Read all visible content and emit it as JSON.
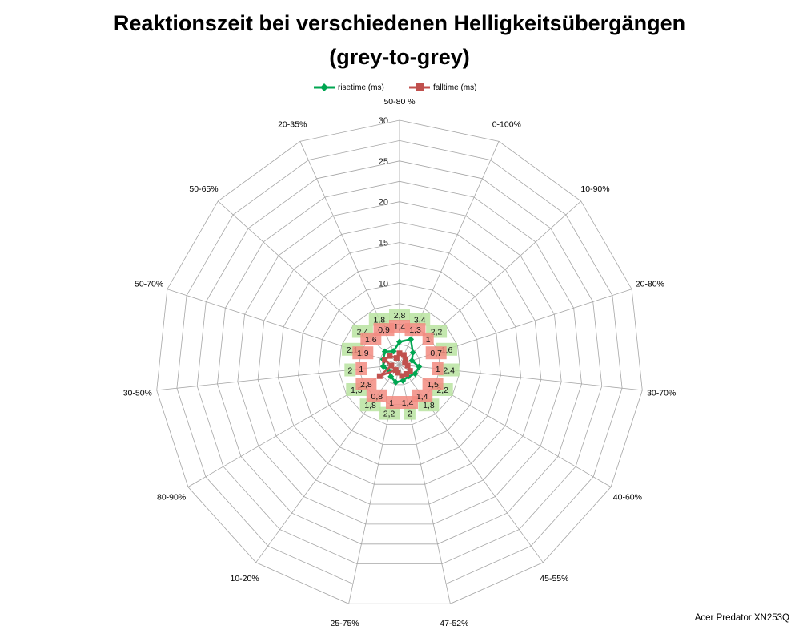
{
  "chart_data": {
    "type": "radar",
    "title": "Reaktionszeit bei verschiedenen Helligkeitsübergängen",
    "subtitle": "(grey-to-grey)",
    "categories": [
      "50-80 %",
      "0-100%",
      "10-90%",
      "20-80%",
      "30-70%",
      "40-60%",
      "45-55%",
      "47-52%",
      "25-75%",
      "10-20%",
      "80-90%",
      "30-50%",
      "50-70%",
      "50-65%",
      "20-35%"
    ],
    "series": [
      {
        "name": "risetime (ms)",
        "color": "#00a651",
        "label_bg": "#b9e3a0",
        "marker": "diamond",
        "values": [
          2.8,
          3.4,
          2.2,
          1.6,
          2.4,
          2.2,
          1.8,
          2,
          2.2,
          1.8,
          1.5,
          2,
          2.1,
          2.4,
          1.8
        ]
      },
      {
        "name": "falltime (ms)",
        "color": "#c0504d",
        "label_bg": "#f28b80",
        "marker": "square",
        "values": [
          1.4,
          1.3,
          1,
          0.7,
          1,
          1.5,
          1.4,
          1.4,
          1,
          0.8,
          2.8,
          1,
          1.9,
          1.6,
          0.9
        ]
      }
    ],
    "rlim": [
      0,
      30
    ],
    "ticks": [
      "0",
      "5",
      "10",
      "15",
      "20",
      "25",
      "30"
    ],
    "legend": "top",
    "grid": true
  },
  "footer": {
    "credit": "Acer Predator XN253Q"
  }
}
